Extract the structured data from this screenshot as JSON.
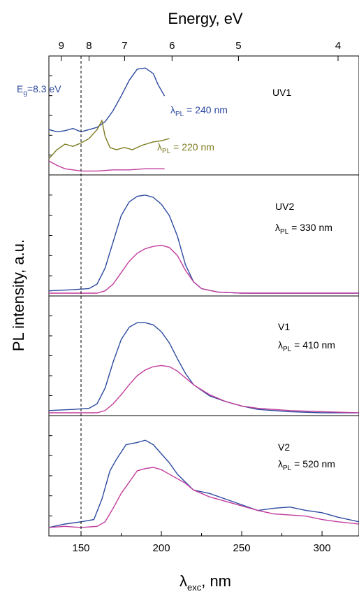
{
  "chart_data": {
    "type": "line",
    "xlabel": "λ",
    "xlabel_sub": "exc",
    "xlabel_suffix": ", nm",
    "ylabel": "PL intensity, a.u.",
    "top_axis_label": "Energy, eV",
    "xlim": [
      130,
      323
    ],
    "x_ticks": [
      "150",
      "200",
      "250",
      "300"
    ],
    "top_ticks": [
      "9",
      "8",
      "7",
      "6",
      "5",
      "4"
    ],
    "annotation": {
      "prefix": "E",
      "sub": "g",
      "suffix": "=8.3 eV",
      "x": 150
    },
    "colors": {
      "blue": "#2c4aa0",
      "magenta": "#c23c9c",
      "olive": "#7b7b1e"
    },
    "panels": [
      {
        "label": "UV1",
        "series_labels": [
          {
            "prefix": "λ",
            "sub": "PL",
            "suffix": " = 240 nm",
            "color": "#2c4aa0"
          },
          {
            "prefix": "λ",
            "sub": "PL",
            "suffix": " = 220 nm",
            "color": "#7b7b1e"
          }
        ],
        "series": [
          {
            "color": "#2c4aa0",
            "points": [
              [
                130,
                0.38
              ],
              [
                135,
                0.36
              ],
              [
                140,
                0.37
              ],
              [
                145,
                0.39
              ],
              [
                150,
                0.36
              ],
              [
                155,
                0.38
              ],
              [
                160,
                0.4
              ],
              [
                165,
                0.45
              ],
              [
                170,
                0.55
              ],
              [
                175,
                0.68
              ],
              [
                180,
                0.82
              ],
              [
                185,
                0.92
              ],
              [
                190,
                0.93
              ],
              [
                195,
                0.88
              ],
              [
                198,
                0.78
              ],
              [
                202,
                0.68
              ]
            ]
          },
          {
            "color": "#7b7b1e",
            "points": [
              [
                130,
                0.12
              ],
              [
                135,
                0.2
              ],
              [
                140,
                0.25
              ],
              [
                145,
                0.23
              ],
              [
                150,
                0.26
              ],
              [
                155,
                0.3
              ],
              [
                160,
                0.38
              ],
              [
                163,
                0.46
              ],
              [
                165,
                0.32
              ],
              [
                168,
                0.22
              ],
              [
                172,
                0.2
              ],
              [
                177,
                0.22
              ],
              [
                182,
                0.2
              ],
              [
                188,
                0.24
              ],
              [
                195,
                0.27
              ],
              [
                200,
                0.28
              ],
              [
                205,
                0.3
              ]
            ]
          },
          {
            "color": "#c23c9c",
            "points": [
              [
                130,
                0.1
              ],
              [
                135,
                0.06
              ],
              [
                140,
                0.03
              ],
              [
                145,
                0.02
              ],
              [
                150,
                0.01
              ],
              [
                160,
                0.01
              ],
              [
                170,
                0.02
              ],
              [
                180,
                0.02
              ],
              [
                190,
                0.03
              ],
              [
                200,
                0.03
              ],
              [
                202,
                0.03
              ]
            ]
          }
        ]
      },
      {
        "label": "UV2",
        "series_labels": [
          {
            "prefix": "λ",
            "sub": "PL",
            "suffix": " = 330 nm",
            "color": "#000000"
          }
        ],
        "series": [
          {
            "color": "#2c4aa0",
            "points": [
              [
                130,
                0.02
              ],
              [
                145,
                0.03
              ],
              [
                155,
                0.04
              ],
              [
                160,
                0.08
              ],
              [
                165,
                0.22
              ],
              [
                170,
                0.45
              ],
              [
                175,
                0.68
              ],
              [
                180,
                0.8
              ],
              [
                185,
                0.85
              ],
              [
                190,
                0.86
              ],
              [
                195,
                0.84
              ],
              [
                200,
                0.78
              ],
              [
                205,
                0.68
              ],
              [
                210,
                0.5
              ],
              [
                215,
                0.25
              ],
              [
                220,
                0.1
              ],
              [
                225,
                0.04
              ],
              [
                235,
                0.01
              ],
              [
                250,
                0.0
              ],
              [
                323,
                0.0
              ]
            ]
          },
          {
            "color": "#c23c9c",
            "points": [
              [
                130,
                0.0
              ],
              [
                160,
                0.0
              ],
              [
                165,
                0.02
              ],
              [
                170,
                0.08
              ],
              [
                175,
                0.18
              ],
              [
                180,
                0.28
              ],
              [
                185,
                0.35
              ],
              [
                190,
                0.39
              ],
              [
                195,
                0.41
              ],
              [
                200,
                0.42
              ],
              [
                205,
                0.4
              ],
              [
                210,
                0.33
              ],
              [
                215,
                0.2
              ],
              [
                220,
                0.1
              ],
              [
                225,
                0.04
              ],
              [
                235,
                0.01
              ],
              [
                250,
                0.0
              ],
              [
                323,
                0.0
              ]
            ]
          }
        ]
      },
      {
        "label": "V1",
        "series_labels": [
          {
            "prefix": "λ",
            "sub": "PL",
            "suffix": " = 410 nm",
            "color": "#000000"
          }
        ],
        "series": [
          {
            "color": "#2c4aa0",
            "points": [
              [
                130,
                0.02
              ],
              [
                145,
                0.03
              ],
              [
                155,
                0.04
              ],
              [
                160,
                0.08
              ],
              [
                165,
                0.22
              ],
              [
                170,
                0.45
              ],
              [
                175,
                0.65
              ],
              [
                180,
                0.76
              ],
              [
                185,
                0.8
              ],
              [
                190,
                0.8
              ],
              [
                195,
                0.78
              ],
              [
                200,
                0.72
              ],
              [
                205,
                0.62
              ],
              [
                210,
                0.48
              ],
              [
                215,
                0.35
              ],
              [
                220,
                0.25
              ],
              [
                230,
                0.15
              ],
              [
                240,
                0.1
              ],
              [
                250,
                0.06
              ],
              [
                260,
                0.03
              ],
              [
                280,
                0.01
              ],
              [
                300,
                0.0
              ],
              [
                323,
                0.0
              ]
            ]
          },
          {
            "color": "#c23c9c",
            "points": [
              [
                130,
                0.0
              ],
              [
                160,
                0.0
              ],
              [
                165,
                0.02
              ],
              [
                170,
                0.08
              ],
              [
                175,
                0.16
              ],
              [
                180,
                0.25
              ],
              [
                185,
                0.33
              ],
              [
                190,
                0.38
              ],
              [
                195,
                0.41
              ],
              [
                200,
                0.42
              ],
              [
                205,
                0.41
              ],
              [
                210,
                0.37
              ],
              [
                215,
                0.31
              ],
              [
                220,
                0.25
              ],
              [
                230,
                0.16
              ],
              [
                240,
                0.1
              ],
              [
                250,
                0.06
              ],
              [
                260,
                0.04
              ],
              [
                280,
                0.02
              ],
              [
                300,
                0.01
              ],
              [
                323,
                0.0
              ]
            ]
          }
        ]
      },
      {
        "label": "V2",
        "series_labels": [
          {
            "prefix": "λ",
            "sub": "PL",
            "suffix": " = 520 nm",
            "color": "#000000"
          }
        ],
        "series": [
          {
            "color": "#2c4aa0",
            "points": [
              [
                130,
                0.05
              ],
              [
                140,
                0.08
              ],
              [
                150,
                0.1
              ],
              [
                158,
                0.12
              ],
              [
                163,
                0.3
              ],
              [
                168,
                0.55
              ],
              [
                172,
                0.65
              ],
              [
                178,
                0.78
              ],
              [
                185,
                0.8
              ],
              [
                190,
                0.82
              ],
              [
                195,
                0.78
              ],
              [
                200,
                0.7
              ],
              [
                205,
                0.62
              ],
              [
                210,
                0.52
              ],
              [
                215,
                0.45
              ],
              [
                220,
                0.38
              ],
              [
                230,
                0.35
              ],
              [
                240,
                0.3
              ],
              [
                250,
                0.25
              ],
              [
                260,
                0.2
              ],
              [
                270,
                0.22
              ],
              [
                280,
                0.23
              ],
              [
                290,
                0.2
              ],
              [
                300,
                0.18
              ],
              [
                310,
                0.14
              ],
              [
                323,
                0.1
              ]
            ]
          },
          {
            "color": "#c23c9c",
            "points": [
              [
                130,
                0.05
              ],
              [
                140,
                0.06
              ],
              [
                150,
                0.05
              ],
              [
                160,
                0.06
              ],
              [
                165,
                0.1
              ],
              [
                170,
                0.22
              ],
              [
                175,
                0.35
              ],
              [
                180,
                0.45
              ],
              [
                185,
                0.55
              ],
              [
                190,
                0.57
              ],
              [
                195,
                0.58
              ],
              [
                200,
                0.56
              ],
              [
                205,
                0.52
              ],
              [
                210,
                0.48
              ],
              [
                215,
                0.44
              ],
              [
                220,
                0.38
              ],
              [
                230,
                0.32
              ],
              [
                240,
                0.28
              ],
              [
                250,
                0.24
              ],
              [
                260,
                0.2
              ],
              [
                270,
                0.17
              ],
              [
                280,
                0.16
              ],
              [
                290,
                0.15
              ],
              [
                300,
                0.12
              ],
              [
                310,
                0.1
              ],
              [
                323,
                0.08
              ]
            ]
          }
        ]
      }
    ]
  }
}
